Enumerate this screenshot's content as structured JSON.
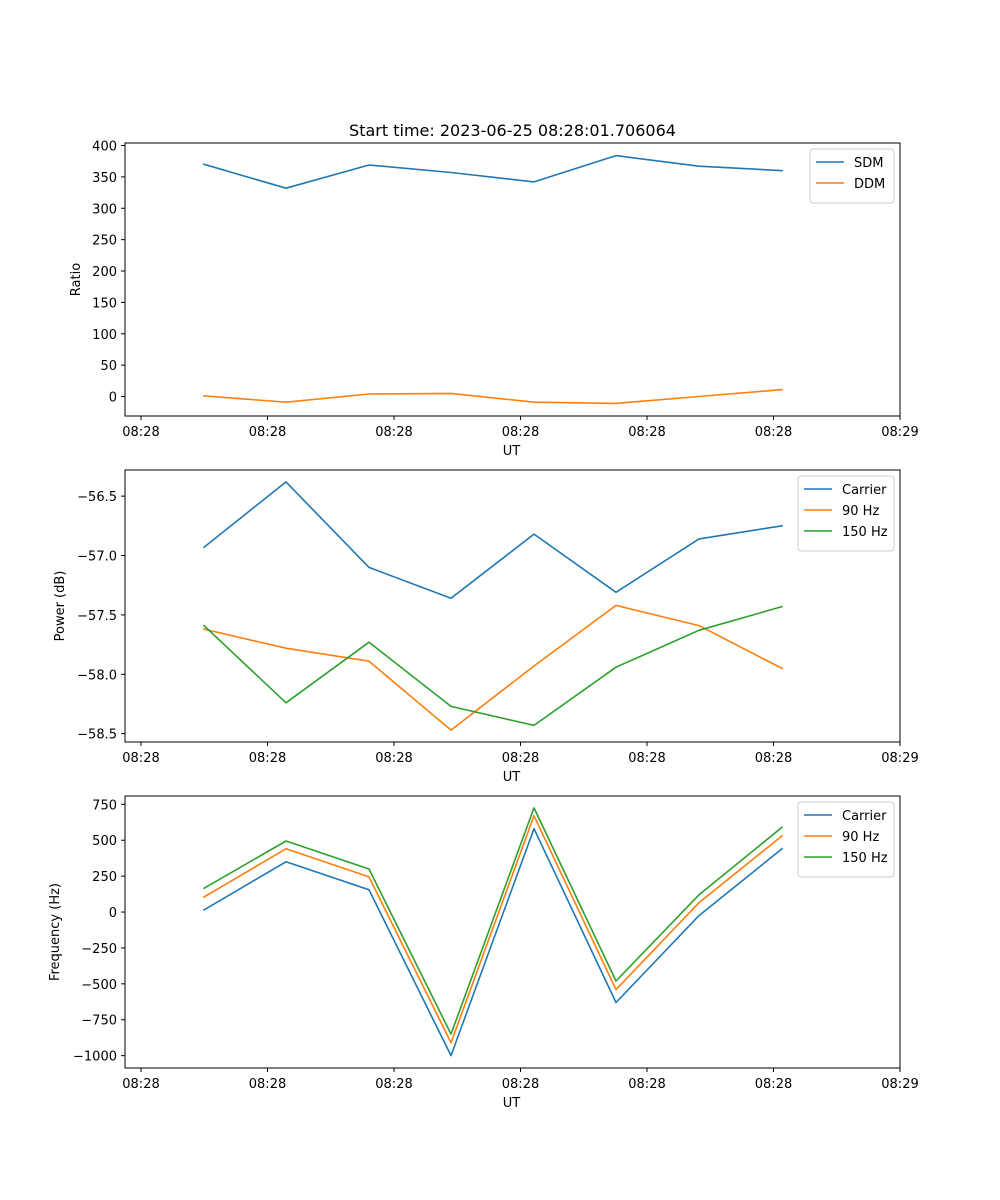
{
  "chart_data": [
    {
      "type": "line",
      "title": "Start time: 2023-06-25 08:28:01.706064",
      "xlabel": "UT",
      "ylabel": "Ratio",
      "x_ticks": [
        "08:28",
        "08:28",
        "08:28",
        "08:28",
        "08:28",
        "08:28",
        "08:28",
        "08:29"
      ],
      "y_ticks": [
        "0",
        "50",
        "100",
        "150",
        "200",
        "250",
        "300",
        "350",
        "400"
      ],
      "ylim": [
        -31,
        404
      ],
      "grid": false,
      "legend_position": "top-right",
      "series": [
        {
          "name": "SDM",
          "color": "#1f77b4",
          "values": [
            370,
            332,
            369,
            357,
            342,
            384,
            367,
            360
          ]
        },
        {
          "name": "DDM",
          "color": "#ff7f0e",
          "values": [
            1,
            -9,
            4,
            5,
            -9,
            -11,
            0,
            11
          ]
        }
      ]
    },
    {
      "type": "line",
      "title": "",
      "xlabel": "UT",
      "ylabel": "Power (dB)",
      "x_ticks": [
        "08:28",
        "08:28",
        "08:28",
        "08:28",
        "08:28",
        "08:28",
        "08:28",
        "08:29"
      ],
      "y_ticks": [
        "−56.5",
        "−57.0",
        "−57.5",
        "−58.0",
        "−58.5"
      ],
      "ylim": [
        -58.57,
        -56.28
      ],
      "grid": false,
      "legend_position": "top-right",
      "series": [
        {
          "name": "Carrier",
          "color": "#1f77b4",
          "values": [
            -56.93,
            -56.38,
            -57.1,
            -57.36,
            -56.82,
            -57.31,
            -56.86,
            -56.75
          ]
        },
        {
          "name": "90 Hz",
          "color": "#ff7f0e",
          "values": [
            -57.62,
            -57.78,
            -57.89,
            -58.47,
            -57.93,
            -57.42,
            -57.59,
            -57.95
          ]
        },
        {
          "name": "150 Hz",
          "color": "#2ca02c",
          "values": [
            -57.59,
            -58.24,
            -57.73,
            -58.27,
            -58.43,
            -57.94,
            -57.63,
            -57.43
          ]
        }
      ]
    },
    {
      "type": "line",
      "title": "",
      "xlabel": "UT",
      "ylabel": "Frequency (Hz)",
      "x_ticks": [
        "08:28",
        "08:28",
        "08:28",
        "08:28",
        "08:28",
        "08:28",
        "08:28",
        "08:29"
      ],
      "y_ticks": [
        "750",
        "500",
        "250",
        "0",
        "−250",
        "−500",
        "−750",
        "−1000"
      ],
      "ylim": [
        -1086,
        808
      ],
      "grid": false,
      "legend_position": "top-right",
      "series": [
        {
          "name": "Carrier",
          "color": "#1f77b4",
          "values": [
            15,
            350,
            155,
            -1000,
            580,
            -630,
            -25,
            440
          ]
        },
        {
          "name": "90 Hz",
          "color": "#ff7f0e",
          "values": [
            105,
            440,
            245,
            -910,
            670,
            -540,
            65,
            530
          ]
        },
        {
          "name": "150 Hz",
          "color": "#2ca02c",
          "values": [
            165,
            495,
            300,
            -850,
            725,
            -480,
            120,
            590
          ]
        }
      ]
    }
  ]
}
